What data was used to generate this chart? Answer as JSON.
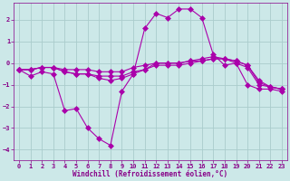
{
  "bg_color": "#cce8e8",
  "grid_color": "#aacccc",
  "line_color": "#aa00aa",
  "marker": "D",
  "xlabel": "Windchill (Refroidissement éolien,°C)",
  "xlim": [
    -0.5,
    23.5
  ],
  "ylim": [
    -4.5,
    2.8
  ],
  "yticks": [
    -4,
    -3,
    -2,
    -1,
    0,
    1,
    2
  ],
  "xticks": [
    0,
    1,
    2,
    3,
    4,
    5,
    6,
    7,
    8,
    9,
    10,
    11,
    12,
    13,
    14,
    15,
    16,
    17,
    18,
    19,
    20,
    21,
    22,
    23
  ],
  "line1": {
    "x": [
      0,
      1,
      2,
      3,
      4,
      5,
      6,
      7,
      8,
      9,
      10,
      11,
      12,
      13,
      14,
      15,
      16,
      17,
      18,
      19,
      20,
      21,
      22,
      23
    ],
    "y": [
      -0.3,
      -0.6,
      -0.4,
      -0.5,
      -2.2,
      -2.1,
      -3.0,
      -3.5,
      -3.8,
      -1.3,
      -0.5,
      1.6,
      2.3,
      2.1,
      2.5,
      2.5,
      2.1,
      0.4,
      -0.1,
      0.0,
      -1.0,
      -1.2,
      -1.2,
      -1.3
    ]
  },
  "line2": {
    "x": [
      0,
      1,
      2,
      3,
      4,
      5,
      6,
      7,
      8,
      9,
      10,
      11,
      12,
      13,
      14,
      15,
      16,
      17,
      18,
      19,
      20,
      21,
      22,
      23
    ],
    "y": [
      -0.3,
      -0.3,
      -0.2,
      -0.2,
      -0.3,
      -0.3,
      -0.3,
      -0.4,
      -0.4,
      -0.4,
      -0.2,
      -0.1,
      0.0,
      0.0,
      0.0,
      0.1,
      0.2,
      0.3,
      0.2,
      0.1,
      -0.1,
      -0.8,
      -1.1,
      -1.2
    ]
  },
  "line3": {
    "x": [
      0,
      1,
      2,
      3,
      4,
      5,
      6,
      7,
      8,
      9,
      10,
      11,
      12,
      13,
      14,
      15,
      16,
      17,
      18,
      19,
      20,
      21,
      22,
      23
    ],
    "y": [
      -0.3,
      -0.3,
      -0.2,
      -0.2,
      -0.4,
      -0.5,
      -0.5,
      -0.6,
      -0.6,
      -0.6,
      -0.4,
      -0.3,
      -0.1,
      -0.1,
      -0.1,
      0.0,
      0.1,
      0.2,
      0.2,
      0.1,
      -0.1,
      -0.9,
      -1.1,
      -1.2
    ]
  },
  "line4": {
    "x": [
      0,
      1,
      2,
      3,
      4,
      5,
      6,
      7,
      8,
      9,
      10,
      11,
      12,
      13,
      14,
      15,
      16,
      17,
      18,
      19,
      20,
      21,
      22,
      23
    ],
    "y": [
      -0.3,
      -0.3,
      -0.2,
      -0.2,
      -0.4,
      -0.5,
      -0.5,
      -0.7,
      -0.8,
      -0.7,
      -0.5,
      -0.3,
      0.0,
      0.0,
      0.0,
      0.1,
      0.1,
      0.2,
      0.2,
      0.0,
      -0.2,
      -1.0,
      -1.1,
      -1.2
    ]
  },
  "tick_fontsize": 5.0,
  "xlabel_fontsize": 5.5,
  "tick_color": "#880088",
  "label_color": "#880088"
}
